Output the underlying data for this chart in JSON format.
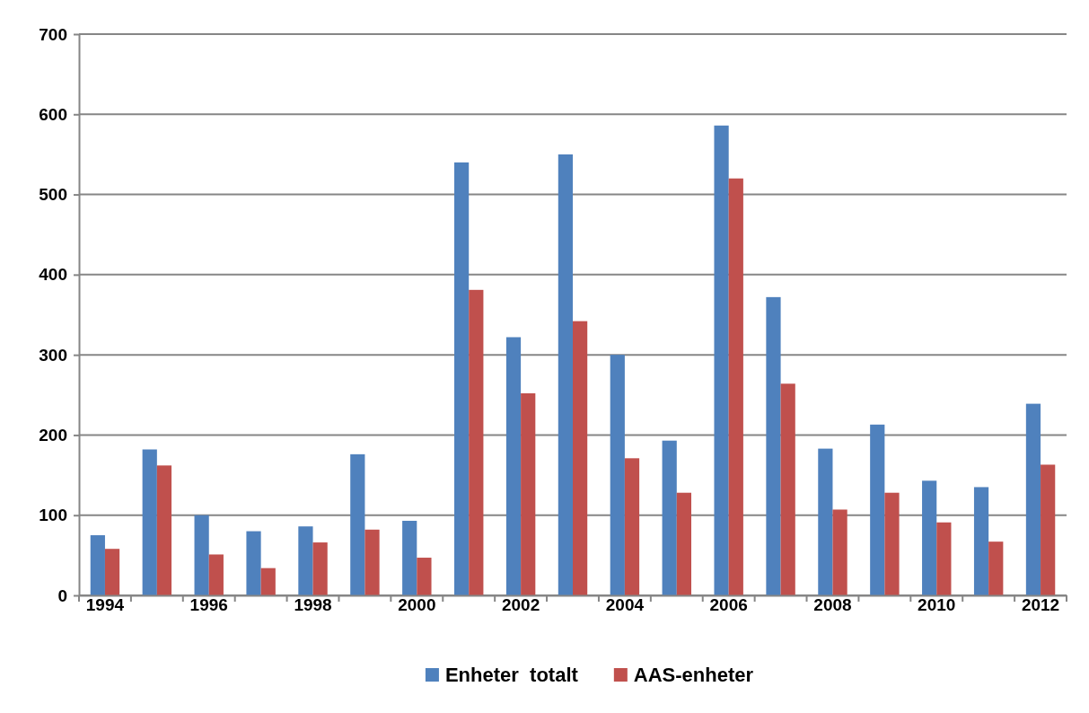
{
  "chart_data": {
    "type": "bar",
    "categories": [
      "1994",
      null,
      "1996",
      null,
      "1998",
      null,
      "2000",
      null,
      "2002",
      null,
      "2004",
      null,
      "2006",
      null,
      "2008",
      null,
      "2010",
      null,
      "2012"
    ],
    "series": [
      {
        "name": "Enheter  totalt",
        "color": "#4f81bd",
        "values": [
          75,
          182,
          100,
          80,
          86,
          176,
          93,
          540,
          322,
          550,
          300,
          193,
          586,
          372,
          183,
          213,
          143,
          135,
          239
        ]
      },
      {
        "name": "AAS-enheter",
        "color": "#c0504d",
        "values": [
          58,
          162,
          51,
          34,
          66,
          82,
          47,
          381,
          252,
          342,
          171,
          128,
          520,
          264,
          107,
          128,
          91,
          67,
          163
        ]
      }
    ],
    "ylim": [
      0,
      700
    ],
    "yticks": [
      0,
      100,
      200,
      300,
      400,
      500,
      600,
      700
    ],
    "grid": "y",
    "legend": "bottom"
  }
}
